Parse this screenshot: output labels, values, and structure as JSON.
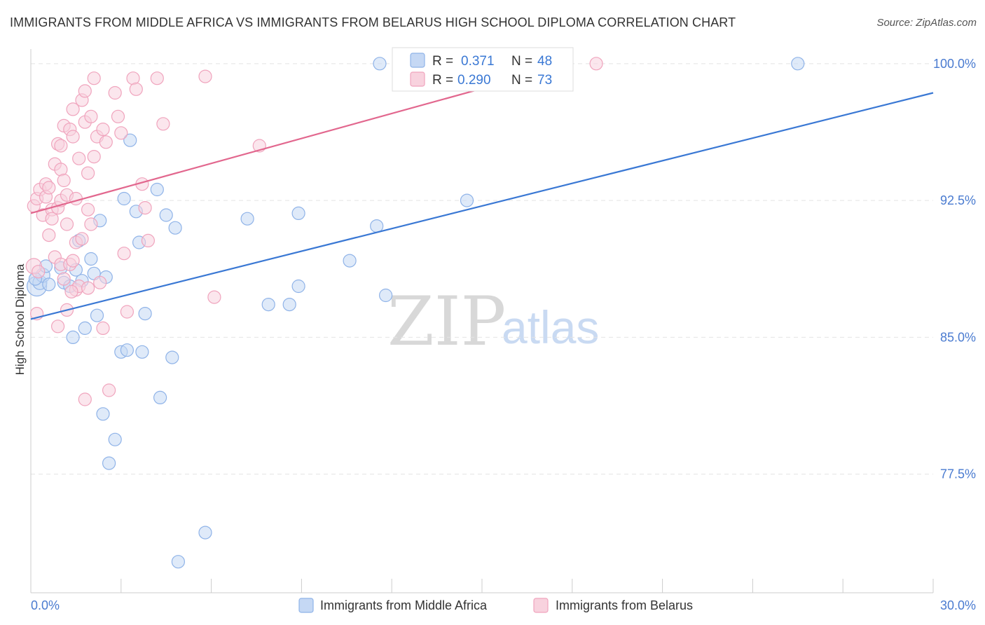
{
  "chart_data": {
    "type": "scatter",
    "title": "IMMIGRANTS FROM MIDDLE AFRICA VS IMMIGRANTS FROM BELARUS HIGH SCHOOL DIPLOMA CORRELATION CHART",
    "source": "Source: ZipAtlas.com",
    "ylabel": "High School Diploma",
    "xlabel": "",
    "xlim": [
      0,
      30
    ],
    "ylim": [
      71.0,
      100.8
    ],
    "x_tick_labels": [
      "0.0%",
      "30.0%"
    ],
    "y_ticks": [
      {
        "value": 100.0,
        "label": "100.0%"
      },
      {
        "value": 92.5,
        "label": "92.5%"
      },
      {
        "value": 85.0,
        "label": "85.0%"
      },
      {
        "value": 77.5,
        "label": "77.5%"
      }
    ],
    "watermark": {
      "part1": "ZIP",
      "part2": "atlas"
    },
    "legend": {
      "r_label": "R =",
      "n_label": "N =",
      "entries": [
        {
          "r": "0.371",
          "n": "48"
        },
        {
          "r": "0.290",
          "n": "73"
        }
      ]
    },
    "series": [
      {
        "name": "Immigrants from Middle Africa",
        "color": "#8fb3e8",
        "fill": "#c5d8f4",
        "line_color": "#3a78d4",
        "trend": {
          "x0": 0.0,
          "y0": 86.0,
          "x1": 30.0,
          "y1": 98.4
        },
        "points": [
          [
            0.2,
            87.8,
            14
          ],
          [
            0.3,
            88.0,
            10
          ],
          [
            0.4,
            88.4,
            10
          ],
          [
            0.5,
            88.9,
            9
          ],
          [
            0.6,
            87.9,
            9
          ],
          [
            1.0,
            88.8,
            9
          ],
          [
            1.1,
            88.0,
            9
          ],
          [
            1.3,
            87.8,
            9
          ],
          [
            1.4,
            85.0,
            9
          ],
          [
            1.5,
            88.7,
            9
          ],
          [
            1.6,
            90.3,
            9
          ],
          [
            1.7,
            88.1,
            9
          ],
          [
            1.8,
            85.5,
            9
          ],
          [
            2.0,
            89.3,
            9
          ],
          [
            2.1,
            88.5,
            9
          ],
          [
            2.2,
            86.2,
            9
          ],
          [
            2.3,
            91.4,
            9
          ],
          [
            2.4,
            80.8,
            9
          ],
          [
            2.5,
            88.3,
            9
          ],
          [
            2.8,
            79.4,
            9
          ],
          [
            2.6,
            78.1,
            9
          ],
          [
            3.0,
            84.2,
            9
          ],
          [
            3.1,
            92.6,
            9
          ],
          [
            3.2,
            84.3,
            9
          ],
          [
            3.3,
            95.8,
            9
          ],
          [
            3.5,
            91.9,
            9
          ],
          [
            3.6,
            90.2,
            9
          ],
          [
            3.7,
            84.2,
            9
          ],
          [
            3.8,
            86.3,
            9
          ],
          [
            4.2,
            93.1,
            9
          ],
          [
            4.3,
            81.7,
            9
          ],
          [
            4.5,
            91.7,
            9
          ],
          [
            4.7,
            83.9,
            9
          ],
          [
            4.8,
            91.0,
            9
          ],
          [
            4.9,
            72.7,
            9
          ],
          [
            5.8,
            74.3,
            9
          ],
          [
            7.2,
            91.5,
            9
          ],
          [
            7.9,
            86.8,
            9
          ],
          [
            8.6,
            86.8,
            9
          ],
          [
            8.9,
            91.8,
            9
          ],
          [
            8.9,
            87.8,
            9
          ],
          [
            10.6,
            89.2,
            9
          ],
          [
            11.5,
            91.1,
            9
          ],
          [
            11.6,
            100.0,
            9
          ],
          [
            11.8,
            87.3,
            9
          ],
          [
            14.5,
            92.5,
            9
          ],
          [
            25.5,
            100.0,
            9
          ],
          [
            0.15,
            88.2,
            9
          ]
        ]
      },
      {
        "name": "Immigrants from Belarus",
        "color": "#f0a4bd",
        "fill": "#f8d2de",
        "line_color": "#e2678e",
        "trend": {
          "x0": 0.0,
          "y0": 91.8,
          "x1": 18.0,
          "y1": 100.0
        },
        "points": [
          [
            0.1,
            88.9,
            11
          ],
          [
            0.1,
            92.2,
            9
          ],
          [
            0.2,
            86.3,
            9
          ],
          [
            0.2,
            92.6,
            9
          ],
          [
            0.3,
            93.1,
            9
          ],
          [
            0.4,
            91.7,
            9
          ],
          [
            0.5,
            92.7,
            9
          ],
          [
            0.5,
            93.4,
            9
          ],
          [
            0.6,
            90.6,
            9
          ],
          [
            0.6,
            93.2,
            9
          ],
          [
            0.7,
            92.0,
            9
          ],
          [
            0.7,
            91.5,
            9
          ],
          [
            0.8,
            94.5,
            9
          ],
          [
            0.8,
            89.4,
            9
          ],
          [
            0.9,
            92.1,
            9
          ],
          [
            0.9,
            85.6,
            9
          ],
          [
            0.9,
            95.6,
            9
          ],
          [
            1.0,
            95.5,
            9
          ],
          [
            1.0,
            94.2,
            9
          ],
          [
            1.0,
            92.5,
            9
          ],
          [
            1.0,
            89.0,
            9
          ],
          [
            1.1,
            96.6,
            9
          ],
          [
            1.1,
            93.6,
            9
          ],
          [
            1.1,
            88.2,
            9
          ],
          [
            1.2,
            91.2,
            9
          ],
          [
            1.2,
            92.8,
            9
          ],
          [
            1.2,
            86.5,
            9
          ],
          [
            1.3,
            96.4,
            9
          ],
          [
            1.3,
            89.0,
            9
          ],
          [
            1.4,
            97.5,
            9
          ],
          [
            1.4,
            96.0,
            9
          ],
          [
            1.4,
            89.2,
            9
          ],
          [
            1.5,
            87.6,
            9
          ],
          [
            1.5,
            90.2,
            9
          ],
          [
            1.5,
            92.6,
            9
          ],
          [
            1.6,
            94.8,
            9
          ],
          [
            1.6,
            87.8,
            9
          ],
          [
            1.7,
            98.0,
            9
          ],
          [
            1.7,
            90.4,
            9
          ],
          [
            1.8,
            96.8,
            9
          ],
          [
            1.8,
            81.6,
            9
          ],
          [
            1.8,
            98.5,
            9
          ],
          [
            1.9,
            94.0,
            9
          ],
          [
            1.9,
            92.0,
            9
          ],
          [
            1.9,
            87.7,
            9
          ],
          [
            2.0,
            91.2,
            9
          ],
          [
            2.0,
            97.1,
            9
          ],
          [
            2.1,
            99.2,
            9
          ],
          [
            2.1,
            94.9,
            9
          ],
          [
            2.2,
            96.0,
            9
          ],
          [
            2.3,
            88.0,
            9
          ],
          [
            2.4,
            96.4,
            9
          ],
          [
            2.4,
            85.5,
            9
          ],
          [
            2.5,
            95.7,
            9
          ],
          [
            2.6,
            82.1,
            9
          ],
          [
            2.8,
            98.4,
            9
          ],
          [
            2.9,
            97.1,
            9
          ],
          [
            3.0,
            96.2,
            9
          ],
          [
            3.1,
            89.6,
            9
          ],
          [
            3.2,
            86.4,
            9
          ],
          [
            3.4,
            99.2,
            9
          ],
          [
            3.5,
            98.6,
            9
          ],
          [
            3.7,
            93.4,
            9
          ],
          [
            3.8,
            92.1,
            9
          ],
          [
            3.9,
            90.3,
            9
          ],
          [
            4.2,
            99.2,
            9
          ],
          [
            4.4,
            96.7,
            9
          ],
          [
            5.8,
            99.3,
            9
          ],
          [
            6.1,
            87.2,
            9
          ],
          [
            7.6,
            95.5,
            9
          ],
          [
            18.8,
            100.0,
            9
          ],
          [
            0.25,
            88.6,
            9
          ],
          [
            1.35,
            87.5,
            9
          ]
        ]
      }
    ]
  }
}
